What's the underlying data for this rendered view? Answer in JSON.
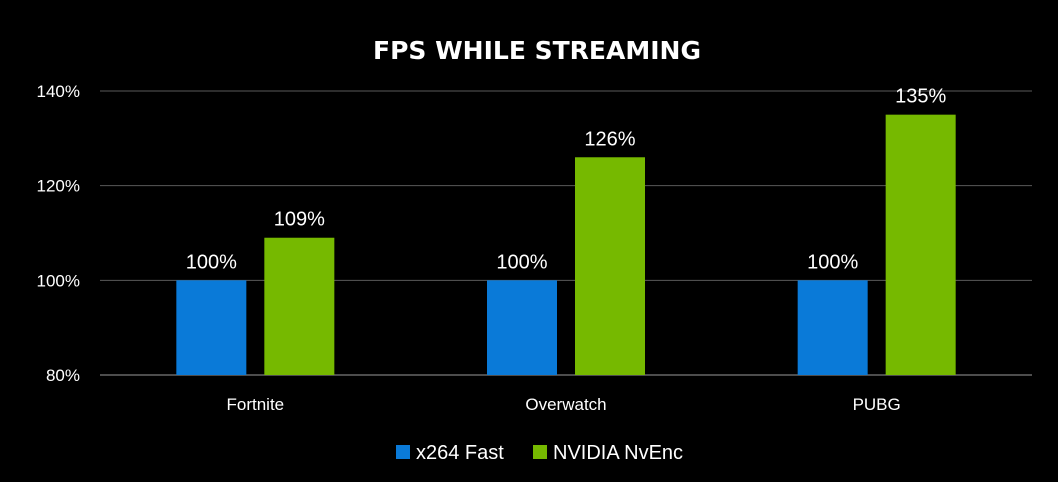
{
  "chart_data": {
    "type": "bar",
    "title": "FPS WHILE STREAMING",
    "xlabel": "",
    "ylabel": "",
    "categories": [
      "Fortnite",
      "Overwatch",
      "PUBG"
    ],
    "ylim": [
      80,
      140
    ],
    "yticks": [
      80,
      100,
      120,
      140
    ],
    "ytick_labels": [
      "80%",
      "100%",
      "120%",
      "140%"
    ],
    "grid": true,
    "legend_position": "bottom-center",
    "series": [
      {
        "name": "x264 Fast",
        "color": "#0a7ad8",
        "values": [
          100,
          100,
          100
        ],
        "labels": [
          "100%",
          "100%",
          "100%"
        ]
      },
      {
        "name": "NVIDIA NvEnc",
        "color": "#76b900",
        "values": [
          109,
          126,
          135
        ],
        "labels": [
          "109%",
          "126%",
          "135%"
        ]
      }
    ]
  }
}
